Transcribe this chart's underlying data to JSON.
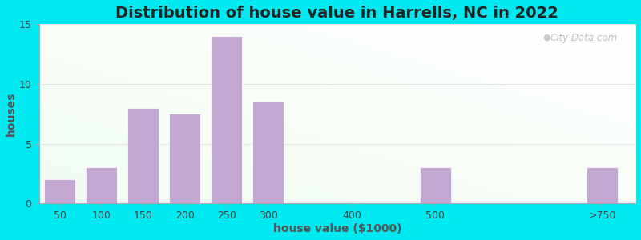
{
  "title": "Distribution of house value in Harrells, NC in 2022",
  "xlabel": "house value ($1000)",
  "ylabel": "houses",
  "categories": [
    "50",
    "100",
    "150",
    "200",
    "250",
    "300",
    "400",
    "500",
    ">750"
  ],
  "x_positions": [
    0,
    1,
    2,
    3,
    4,
    5,
    7,
    9,
    13
  ],
  "values": [
    2,
    3,
    8,
    7.5,
    14,
    8.5,
    0,
    3,
    3
  ],
  "bar_color": "#c4a8d4",
  "bar_edge_color": "#c4a8d4",
  "background_outer": "#00e8f0",
  "ylim": [
    0,
    15
  ],
  "yticks": [
    0,
    5,
    10,
    15
  ],
  "title_fontsize": 14,
  "axis_label_fontsize": 10,
  "tick_fontsize": 9,
  "watermark": "City-Data.com"
}
